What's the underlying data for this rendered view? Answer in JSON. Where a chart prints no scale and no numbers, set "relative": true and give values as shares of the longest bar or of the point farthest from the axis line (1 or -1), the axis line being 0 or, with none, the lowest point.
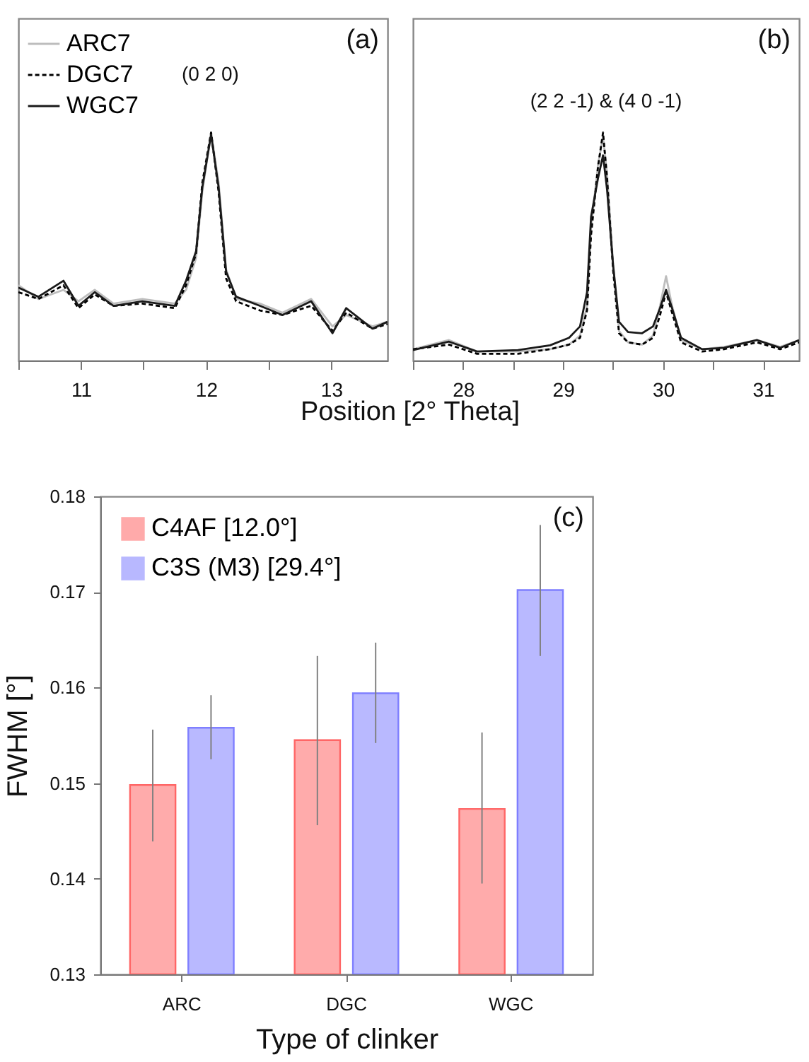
{
  "chart_data": [
    {
      "type": "line",
      "relative": true,
      "xlabel": "Position [2° Theta]",
      "legend": "top left",
      "annotations": [
        "(a)",
        "(0 2 0)"
      ],
      "xlim": [
        10.5,
        13.45
      ],
      "xticks": [
        {
          "value": 10.5,
          "label": null
        },
        11,
        {
          "value": 11.5,
          "label": null
        },
        12,
        {
          "value": 12.5,
          "label": null
        },
        13
      ],
      "x": [
        10.5,
        10.66,
        10.86,
        10.98,
        11.11,
        11.26,
        11.49,
        11.75,
        11.84,
        11.92,
        11.97,
        12.04,
        12.1,
        12.16,
        12.24,
        12.43,
        12.61,
        12.84,
        13.01,
        13.12,
        13.33,
        13.45
      ],
      "series": [
        {
          "name": "ARC7",
          "color": "#bdbdbd",
          "line_style": "solid",
          "values": [
            0.33,
            0.27,
            0.31,
            0.26,
            0.31,
            0.25,
            0.27,
            0.25,
            0.31,
            0.45,
            0.74,
            1.0,
            0.78,
            0.4,
            0.27,
            0.25,
            0.21,
            0.27,
            0.15,
            0.2,
            0.15,
            0.17
          ]
        },
        {
          "name": "DGC7",
          "color": "#000000",
          "line_style": "dashed",
          "values": [
            0.3,
            0.27,
            0.33,
            0.23,
            0.29,
            0.24,
            0.25,
            0.23,
            0.33,
            0.47,
            0.78,
            1.0,
            0.74,
            0.36,
            0.26,
            0.22,
            0.2,
            0.24,
            0.13,
            0.21,
            0.14,
            0.16
          ]
        },
        {
          "name": "WGC7",
          "color": "#1a1a1a",
          "line_style": "solid",
          "values": [
            0.32,
            0.28,
            0.35,
            0.24,
            0.3,
            0.24,
            0.26,
            0.24,
            0.35,
            0.48,
            0.76,
            0.99,
            0.76,
            0.39,
            0.28,
            0.24,
            0.2,
            0.26,
            0.12,
            0.23,
            0.14,
            0.17
          ]
        }
      ]
    },
    {
      "type": "line",
      "relative": true,
      "annotations": [
        "(b)",
        "(2 2 -1) & (4 0 -1)"
      ],
      "xlim": [
        27.5,
        31.36
      ],
      "xticks": [
        {
          "value": 27.5,
          "label": null
        },
        28,
        {
          "value": 28.5,
          "label": null
        },
        29,
        {
          "value": 29.5,
          "label": null
        },
        30,
        {
          "value": 30.5,
          "label": null
        },
        31
      ],
      "x": [
        27.5,
        27.86,
        28.14,
        28.55,
        28.87,
        29.06,
        29.17,
        29.24,
        29.28,
        29.35,
        29.4,
        29.44,
        29.5,
        29.56,
        29.65,
        29.79,
        29.9,
        29.97,
        30.03,
        30.09,
        30.18,
        30.39,
        30.61,
        30.94,
        31.17,
        31.36
      ],
      "series": [
        {
          "color": "#bdbdbd",
          "line_style": "solid",
          "values": [
            0.05,
            0.09,
            0.04,
            0.04,
            0.05,
            0.07,
            0.11,
            0.24,
            0.58,
            0.86,
            0.98,
            0.82,
            0.43,
            0.13,
            0.08,
            0.07,
            0.11,
            0.24,
            0.37,
            0.24,
            0.09,
            0.05,
            0.06,
            0.09,
            0.06,
            0.09
          ]
        },
        {
          "color": "#000000",
          "line_style": "dashed",
          "values": [
            0.05,
            0.07,
            0.03,
            0.03,
            0.05,
            0.07,
            0.1,
            0.22,
            0.55,
            0.85,
            1.0,
            0.8,
            0.4,
            0.12,
            0.08,
            0.07,
            0.1,
            0.2,
            0.3,
            0.21,
            0.08,
            0.04,
            0.05,
            0.08,
            0.05,
            0.08
          ]
        },
        {
          "color": "#1a1a1a",
          "line_style": "solid",
          "values": [
            0.046,
            0.083,
            0.04,
            0.046,
            0.067,
            0.1,
            0.15,
            0.3,
            0.63,
            0.8,
            0.9,
            0.75,
            0.42,
            0.17,
            0.125,
            0.12,
            0.15,
            0.23,
            0.31,
            0.23,
            0.1,
            0.05,
            0.056,
            0.09,
            0.056,
            0.09
          ]
        }
      ]
    },
    {
      "type": "bar",
      "xlabel": "Type of clinker",
      "ylabel": "FWHM [°]",
      "legend": "top left",
      "annotations": [
        "(c)"
      ],
      "categories": [
        "ARC",
        "DGC",
        "WGC"
      ],
      "ylim": [
        0.13,
        0.18
      ],
      "yticks": [
        0.13,
        0.14,
        0.15,
        0.16,
        0.17,
        0.18
      ],
      "series": [
        {
          "name": "C4AF [12.0°]",
          "color": "#ff6666",
          "values": [
            0.1498,
            0.1545,
            0.1473
          ],
          "errors": [
            [
              0.1439,
              0.1556
            ],
            [
              0.1456,
              0.1633
            ],
            [
              0.1395,
              0.1553
            ]
          ]
        },
        {
          "name": "C3S (M3) [29.4°]",
          "color": "#7f7fff",
          "values": [
            0.1558,
            0.1594,
            0.1702
          ],
          "errors": [
            [
              0.1525,
              0.1592
            ],
            [
              0.1542,
              0.1647
            ],
            [
              0.1633,
              0.177
            ]
          ]
        }
      ]
    }
  ]
}
